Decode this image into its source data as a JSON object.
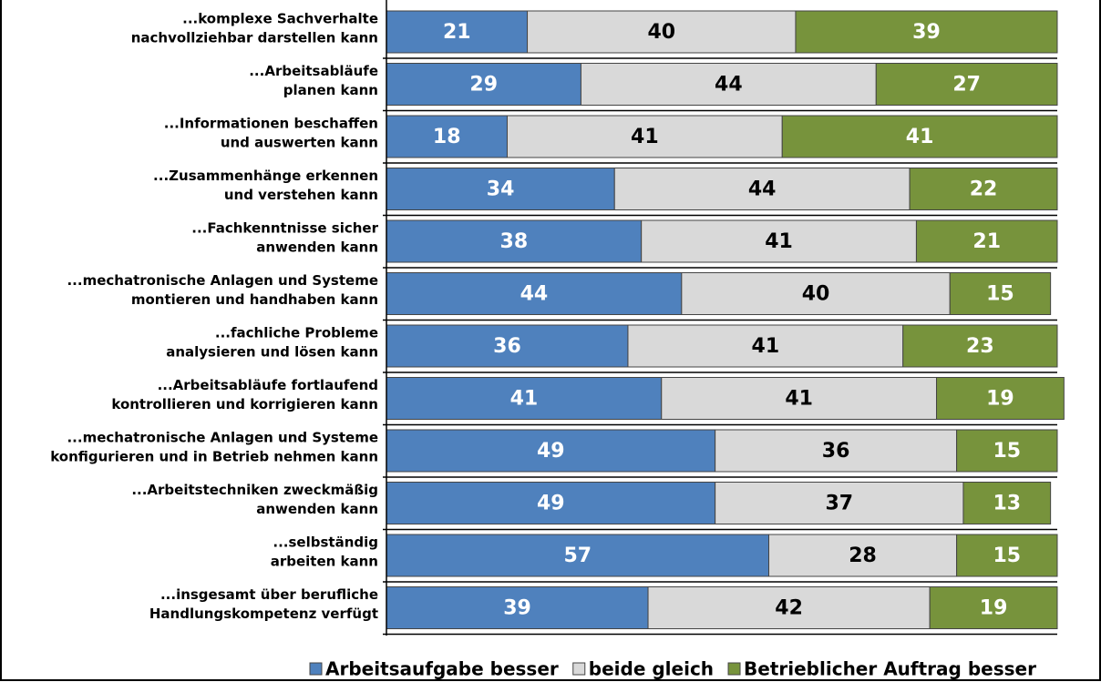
{
  "chart_data": {
    "type": "stacked_bar_horizontal",
    "categories": [
      [
        "...komplexe Sachverhalte",
        "nachvollziehbar darstellen kann"
      ],
      [
        "...Arbeitsabläufe",
        "planen kann"
      ],
      [
        "...Informationen beschaffen",
        "und auswerten kann"
      ],
      [
        "...Zusammenhänge erkennen",
        "und verstehen kann"
      ],
      [
        "...Fachkenntnisse sicher",
        "anwenden kann"
      ],
      [
        "...mechatronische Anlagen und Systeme",
        "montieren und handhaben kann"
      ],
      [
        "...fachliche Probleme",
        "analysieren und lösen kann"
      ],
      [
        "...Arbeitsabläufe fortlaufend",
        "kontrollieren und korrigieren kann"
      ],
      [
        "...mechatronische Anlagen und Systeme",
        "konfigurieren und in Betrieb nehmen kann"
      ],
      [
        "...Arbeitstechniken zweckmäßig",
        "anwenden kann"
      ],
      [
        "...selbständig",
        "arbeiten kann"
      ],
      [
        "...insgesamt über berufliche",
        "Handlungskompetenz verfügt"
      ]
    ],
    "series": [
      {
        "name": "Arbeitsaufgabe besser",
        "color": "#4f81bd",
        "values": [
          21,
          29,
          18,
          34,
          38,
          44,
          36,
          41,
          49,
          49,
          57,
          39
        ]
      },
      {
        "name": "beide gleich",
        "color": "#d9d9d9",
        "values": [
          40,
          44,
          41,
          44,
          41,
          40,
          41,
          41,
          36,
          37,
          28,
          42
        ]
      },
      {
        "name": "Betrieblicher Auftrag besser",
        "color": "#77933c",
        "values": [
          39,
          27,
          41,
          22,
          21,
          15,
          23,
          19,
          15,
          13,
          15,
          19
        ]
      }
    ],
    "xlim": [
      0,
      100
    ],
    "legend": "bottom"
  }
}
